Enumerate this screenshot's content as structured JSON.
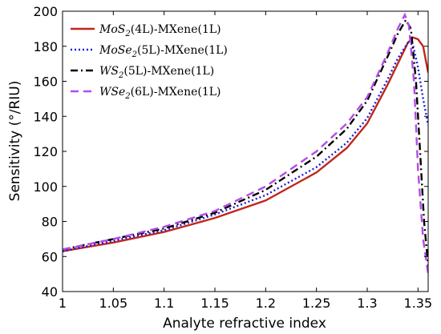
{
  "chart_data": {
    "type": "line",
    "xlabel": "Analyte refractive index",
    "ylabel": "Sensitivity (°/RIU)",
    "xlim": [
      1.0,
      1.36
    ],
    "ylim": [
      40,
      200
    ],
    "xticks": [
      1.0,
      1.05,
      1.1,
      1.15,
      1.2,
      1.25,
      1.3,
      1.35
    ],
    "xtick_labels": [
      "1",
      "1.05",
      "1.1",
      "1.15",
      "1.2",
      "1.25",
      "1.3",
      "1.35"
    ],
    "yticks": [
      40,
      60,
      80,
      100,
      120,
      140,
      160,
      180,
      200
    ],
    "ytick_labels": [
      "40",
      "60",
      "80",
      "100",
      "120",
      "140",
      "160",
      "180",
      "200"
    ],
    "grid": false,
    "legend_position": "top-left",
    "series": [
      {
        "legend_main": "MoS",
        "legend_sub": "2",
        "legend_rest": "(4L)-MXene(1L)",
        "color": "#c0261b",
        "dash": "solid",
        "x": [
          1.0,
          1.05,
          1.1,
          1.15,
          1.2,
          1.25,
          1.28,
          1.3,
          1.32,
          1.33,
          1.34,
          1.345,
          1.35,
          1.355,
          1.36
        ],
        "y": [
          63,
          68,
          74,
          82,
          92,
          108,
          122,
          136,
          158,
          170,
          182,
          185,
          184,
          180,
          165
        ]
      },
      {
        "legend_main": "MoSe",
        "legend_sub": "2",
        "legend_rest": "(5L)-MXene(1L)",
        "color": "#1a1ad6",
        "dash": "dotted",
        "x": [
          1.0,
          1.05,
          1.1,
          1.15,
          1.2,
          1.25,
          1.28,
          1.3,
          1.32,
          1.33,
          1.34,
          1.345,
          1.35,
          1.355,
          1.36
        ],
        "y": [
          63,
          69,
          75,
          84,
          95,
          111,
          125,
          139,
          161,
          173,
          182,
          181,
          168,
          150,
          135
        ]
      },
      {
        "legend_main": "WS",
        "legend_sub": "2",
        "legend_rest": "(5L)-MXene(1L)",
        "color": "#000000",
        "dash": "dashdot",
        "x": [
          1.0,
          1.05,
          1.1,
          1.15,
          1.2,
          1.25,
          1.28,
          1.3,
          1.32,
          1.33,
          1.338,
          1.343,
          1.348,
          1.352,
          1.356,
          1.36
        ],
        "y": [
          64,
          70,
          76,
          85,
          98,
          117,
          133,
          149,
          174,
          187,
          195,
          190,
          160,
          120,
          80,
          55
        ]
      },
      {
        "legend_main": "WSe",
        "legend_sub": "2",
        "legend_rest": "(6L)-MXene(1L)",
        "color": "#b44be8",
        "dash": "dashed",
        "x": [
          1.0,
          1.05,
          1.1,
          1.15,
          1.2,
          1.25,
          1.28,
          1.3,
          1.32,
          1.33,
          1.337,
          1.341,
          1.346,
          1.35,
          1.355,
          1.36
        ],
        "y": [
          64,
          70,
          77,
          86,
          100,
          120,
          136,
          151,
          176,
          190,
          198,
          192,
          160,
          110,
          70,
          50
        ]
      }
    ]
  }
}
